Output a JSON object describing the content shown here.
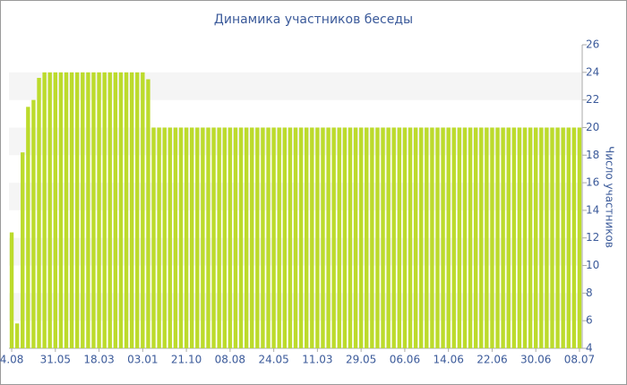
{
  "chart_data": {
    "type": "bar",
    "title": "Динамика участников беседы",
    "y_label": "Число участников",
    "categories": [
      "4.08",
      null,
      null,
      null,
      null,
      null,
      null,
      null,
      "31.05",
      null,
      null,
      null,
      null,
      null,
      null,
      null,
      "18.03",
      null,
      null,
      null,
      null,
      null,
      null,
      null,
      "03.01",
      null,
      null,
      null,
      null,
      null,
      null,
      null,
      "21.10",
      null,
      null,
      null,
      null,
      null,
      null,
      null,
      "08.08",
      null,
      null,
      null,
      null,
      null,
      null,
      null,
      "24.05",
      null,
      null,
      null,
      null,
      null,
      null,
      null,
      "11.03",
      null,
      null,
      null,
      null,
      null,
      null,
      null,
      "29.05",
      null,
      null,
      null,
      null,
      null,
      null,
      null,
      "06.06",
      null,
      null,
      null,
      null,
      null,
      null,
      null,
      "14.06",
      null,
      null,
      null,
      null,
      null,
      null,
      null,
      "22.06",
      null,
      null,
      null,
      null,
      null,
      null,
      null,
      "30.06",
      null,
      null,
      null,
      null,
      null,
      null,
      null,
      "08.07"
    ],
    "values": [
      12.4,
      5.8,
      18.2,
      21.5,
      22,
      23.6,
      24,
      24,
      24,
      24,
      24,
      24,
      24,
      24,
      24,
      24,
      24,
      24,
      24,
      24,
      24,
      24,
      24,
      24,
      24,
      23.5,
      20,
      20,
      20,
      20,
      20,
      20,
      20,
      20,
      20,
      20,
      20,
      20,
      20,
      20,
      20,
      20,
      20,
      20,
      20,
      20,
      20,
      20,
      20,
      20,
      20,
      20,
      20,
      20,
      20,
      20,
      20,
      20,
      20,
      20,
      20,
      20,
      20,
      20,
      20,
      20,
      20,
      20,
      20,
      20,
      20,
      20,
      20,
      20,
      20,
      20,
      20,
      20,
      20,
      20,
      20,
      20,
      20,
      20,
      20,
      20,
      20,
      20,
      20,
      20,
      20,
      20,
      20,
      20,
      20,
      20,
      20,
      20,
      20,
      20,
      20,
      20,
      20,
      20,
      20
    ],
    "color": "#bcdb2c",
    "ylim": [
      4,
      26
    ],
    "yticks": [
      4,
      6,
      8,
      10,
      12,
      14,
      16,
      18,
      20,
      22,
      24,
      26
    ],
    "grid": true
  }
}
